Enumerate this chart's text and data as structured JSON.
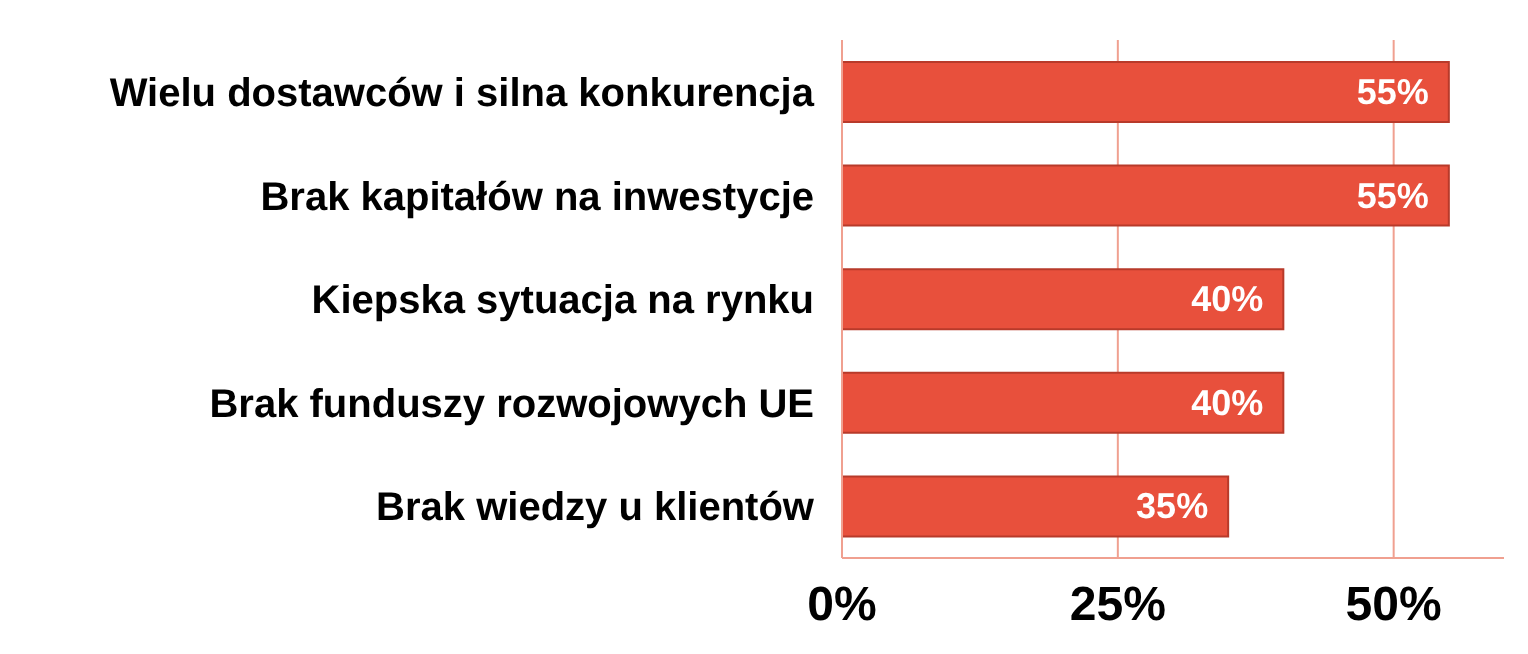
{
  "chart_data": {
    "type": "bar",
    "orientation": "horizontal",
    "categories": [
      "Wielu dostawców i silna konkurencja",
      "Brak kapitałów na inwestycje",
      "Kiepska sytuacja na rynku",
      "Brak funduszy rozwojowych UE",
      "Brak wiedzy u klientów"
    ],
    "values": [
      55,
      55,
      40,
      40,
      35
    ],
    "value_labels": [
      "55%",
      "55%",
      "40%",
      "40%",
      "35%"
    ],
    "color": "#e8503c",
    "xlim": [
      0,
      60
    ],
    "xticks": [
      {
        "value": 0,
        "label": "0%"
      },
      {
        "value": 25,
        "label": "25%"
      },
      {
        "value": 50,
        "label": "50%"
      }
    ],
    "grid": "x"
  }
}
